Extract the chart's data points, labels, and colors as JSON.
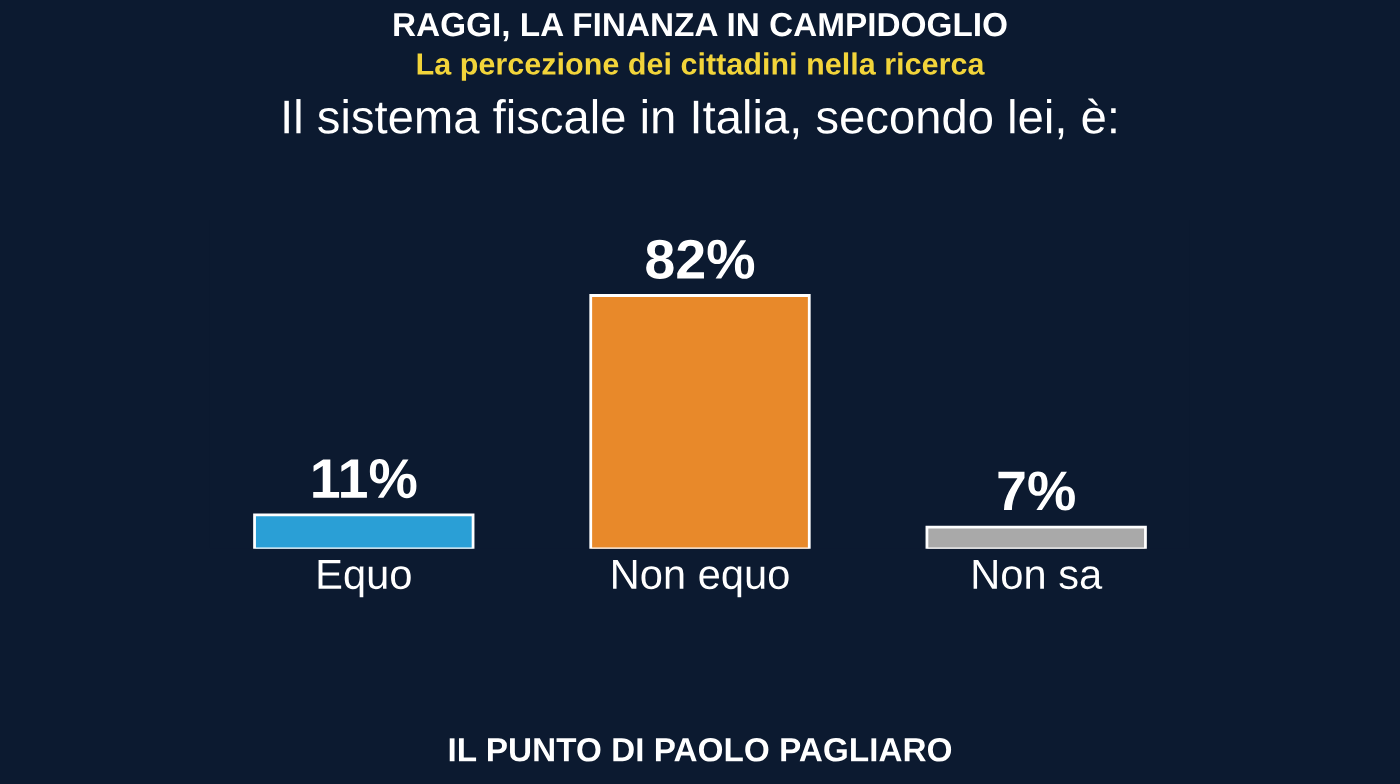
{
  "chart_data": {
    "type": "bar",
    "title": "Il sistema fiscale in Italia, secondo lei, è:",
    "subtitle": "La percezione dei cittadini nella ricerca",
    "categories": [
      "Equo",
      "Non equo",
      "Non sa"
    ],
    "values": [
      11,
      82,
      7
    ],
    "colors": [
      "#2a9fd6",
      "#e8892a",
      "#a9a9a9"
    ],
    "value_labels": [
      "11%",
      "82%",
      "7%"
    ],
    "annotations": [
      "RAGGI, LA FINANZA IN CAMPIDOGLIO",
      "IL PUNTO DI PAOLO PAGLIARO"
    ],
    "grid": false,
    "legend": false
  }
}
